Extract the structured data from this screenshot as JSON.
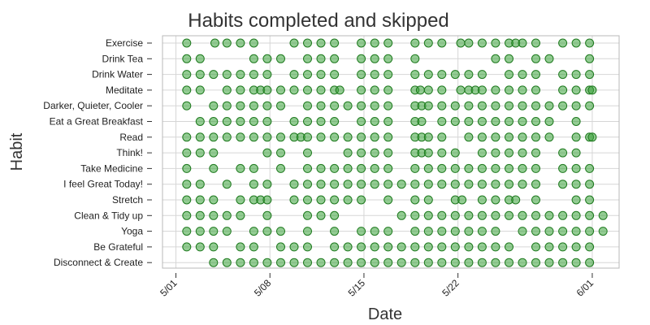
{
  "chart_data": {
    "type": "scatter",
    "title": "Habits completed   and skipped",
    "xlabel": "Date",
    "ylabel": "Habit",
    "x_ticks": [
      "5/01",
      "5/08",
      "5/15",
      "5/22",
      "6/01"
    ],
    "x_tick_days": [
      0,
      7,
      14,
      21,
      31
    ],
    "xlim": [
      -1,
      33
    ],
    "grid": true,
    "colors": {
      "marker_fill": "#3aa33a",
      "marker_edge": "#1f7a1f",
      "grid": "#d6d6d6",
      "frame": "#b8b8b8",
      "text": "#333333"
    },
    "categories": [
      "Exercise",
      "Drink Tea",
      "Drink Water",
      "Meditate",
      "Darker, Quieter, Cooler",
      "Eat a Great Breakfast",
      "Read",
      "Think!",
      "Take Medicine",
      "I feel Great Today!",
      "Stretch",
      "Clean & Tidy up",
      "Yoga",
      "Be Grateful",
      "Disconnect & Create"
    ],
    "series": [
      {
        "category": "Exercise",
        "x": [
          0.8,
          2.9,
          3.8,
          4.8,
          5.8,
          8.8,
          9.8,
          10.8,
          11.8,
          13.8,
          14.8,
          15.8,
          17.8,
          18.8,
          19.8,
          21.2,
          21.8,
          22.8,
          23.8,
          24.8,
          25.3,
          25.8,
          26.8,
          28.8,
          29.8,
          30.8
        ]
      },
      {
        "category": "Drink Tea",
        "x": [
          0.8,
          1.8,
          5.8,
          6.8,
          7.8,
          9.8,
          10.8,
          11.8,
          13.8,
          14.8,
          15.8,
          17.8,
          23.8,
          24.8,
          26.8,
          27.8,
          30.8
        ]
      },
      {
        "category": "Drink Water",
        "x": [
          0.8,
          1.8,
          2.8,
          3.8,
          4.8,
          5.8,
          6.8,
          8.8,
          9.8,
          10.8,
          11.8,
          13.8,
          14.8,
          15.8,
          17.8,
          18.8,
          19.8,
          20.8,
          21.8,
          22.8,
          24.8,
          25.8,
          26.8,
          28.8,
          29.8,
          30.8
        ]
      },
      {
        "category": "Meditate",
        "x": [
          0.8,
          1.8,
          3.8,
          4.8,
          5.8,
          6.3,
          6.8,
          7.8,
          8.8,
          9.8,
          10.8,
          11.8,
          12.2,
          13.8,
          14.8,
          15.8,
          17.8,
          18.2,
          18.8,
          19.8,
          21.2,
          21.8,
          22.3,
          22.8,
          23.8,
          24.8,
          25.8,
          26.8,
          28.8,
          29.8,
          30.8,
          31
        ]
      },
      {
        "category": "Darker, Quieter, Cooler",
        "x": [
          0.8,
          2.8,
          3.8,
          4.8,
          5.8,
          6.8,
          7.8,
          9.8,
          10.8,
          11.8,
          12.8,
          13.8,
          14.8,
          15.8,
          17.8,
          18.3,
          18.8,
          19.8,
          20.8,
          21.8,
          22.8,
          23.8,
          24.8,
          25.8,
          26.8,
          27.8,
          28.8,
          29.8,
          30.8
        ]
      },
      {
        "category": "Eat a Great Breakfast",
        "x": [
          1.8,
          2.8,
          3.8,
          4.8,
          5.8,
          6.8,
          8.8,
          9.8,
          10.8,
          11.8,
          13.8,
          14.8,
          15.8,
          17.8,
          18.3,
          19.8,
          20.8,
          21.8,
          22.8,
          23.8,
          24.8,
          25.8,
          26.8,
          27.8,
          29.8
        ]
      },
      {
        "category": "Read",
        "x": [
          0.8,
          1.8,
          2.8,
          3.8,
          4.8,
          5.8,
          6.8,
          7.8,
          8.8,
          9.3,
          9.8,
          10.8,
          11.8,
          12.8,
          13.8,
          14.8,
          15.8,
          17.8,
          18.3,
          18.8,
          19.8,
          21.8,
          22.8,
          23.8,
          24.8,
          25.8,
          26.8,
          27.8,
          29.8,
          30.8,
          31
        ]
      },
      {
        "category": "Think!",
        "x": [
          0.8,
          1.8,
          2.8,
          6.8,
          7.8,
          9.8,
          12.8,
          13.8,
          14.8,
          15.8,
          17.8,
          18.3,
          18.8,
          19.8,
          20.8,
          22.8,
          23.8,
          24.8,
          25.8,
          26.8,
          28.8,
          29.8
        ]
      },
      {
        "category": "Take Medicine",
        "x": [
          0.8,
          2.8,
          4.8,
          5.8,
          7.8,
          9.8,
          10.8,
          11.8,
          12.8,
          13.8,
          14.8,
          15.8,
          17.8,
          18.8,
          19.8,
          20.8,
          21.8,
          22.8,
          23.8,
          24.8,
          25.8,
          26.8,
          28.8,
          29.8,
          30.8
        ]
      },
      {
        "category": "I feel Great Today!",
        "x": [
          0.8,
          1.8,
          3.8,
          5.8,
          6.8,
          8.8,
          9.8,
          10.8,
          11.8,
          12.8,
          13.8,
          14.8,
          15.8,
          16.8,
          17.8,
          18.8,
          19.8,
          20.8,
          21.8,
          22.8,
          23.8,
          24.8,
          25.8,
          26.8,
          28.8,
          29.8,
          30.8
        ]
      },
      {
        "category": "Stretch",
        "x": [
          0.8,
          1.8,
          2.8,
          4.8,
          5.8,
          6.3,
          6.8,
          8.8,
          9.8,
          10.8,
          11.8,
          12.8,
          13.8,
          15.8,
          17.8,
          18.8,
          20.8,
          21.3,
          22.8,
          23.8,
          24.8,
          25.3,
          26.8,
          29.8,
          30.8
        ]
      },
      {
        "category": "Clean & Tidy up",
        "x": [
          0.8,
          1.8,
          2.8,
          3.8,
          4.8,
          6.8,
          9.8,
          10.8,
          11.8,
          16.8,
          17.8,
          18.8,
          19.8,
          20.8,
          21.8,
          22.8,
          23.8,
          24.8,
          25.8,
          26.8,
          27.8,
          28.8,
          29.8,
          30.8,
          31.8
        ]
      },
      {
        "category": "Yoga",
        "x": [
          0.8,
          1.8,
          2.8,
          3.8,
          5.8,
          6.8,
          7.8,
          9.8,
          11.8,
          13.8,
          14.8,
          15.8,
          17.8,
          18.8,
          19.8,
          20.8,
          21.8,
          22.8,
          23.8,
          25.8,
          26.8,
          27.8,
          28.8,
          29.8,
          30.8,
          31.8
        ]
      },
      {
        "category": "Be Grateful",
        "x": [
          0.8,
          1.8,
          2.8,
          4.8,
          5.8,
          7.8,
          8.8,
          9.8,
          11.8,
          12.8,
          13.8,
          14.8,
          15.8,
          16.8,
          17.8,
          18.8,
          19.8,
          20.8,
          21.8,
          22.8,
          23.8,
          24.8,
          26.8,
          27.8,
          28.8,
          29.8,
          30.8
        ]
      },
      {
        "category": "Disconnect & Create",
        "x": [
          2.8,
          3.8,
          4.8,
          5.8,
          6.8,
          7.8,
          8.8,
          9.8,
          10.8,
          11.8,
          12.8,
          13.8,
          14.8,
          15.8,
          16.8,
          17.8,
          18.8,
          19.8,
          20.8,
          21.8,
          22.8,
          23.8,
          24.8,
          25.8,
          26.8,
          27.8,
          28.8,
          29.8,
          30.8
        ]
      }
    ]
  }
}
